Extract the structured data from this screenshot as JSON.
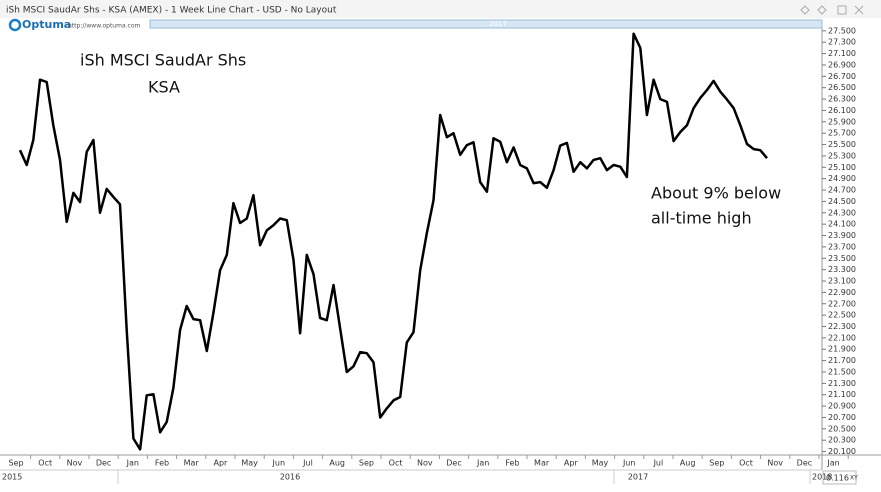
{
  "header": {
    "title": "iSh MSCI SaudAr Shs  - KSA (AMEX) - 1 Week Line Chart - USD - No Layout",
    "brand": "Optuma",
    "url": "http://www.optuma.com",
    "scroll_label": "2017"
  },
  "chart_data": {
    "type": "line",
    "annotations": [
      "iSh MSCI SaudAr Shs",
      "KSA",
      "About 9% below",
      "all-time high"
    ],
    "color": "#000000",
    "values": [
      25.4,
      25.14,
      25.58,
      26.64,
      26.6,
      25.84,
      25.23,
      24.14,
      24.65,
      24.49,
      25.37,
      25.58,
      24.3,
      24.72,
      24.58,
      24.45,
      22.24,
      20.33,
      20.14,
      21.09,
      21.11,
      20.44,
      20.62,
      21.22,
      22.24,
      22.66,
      22.43,
      22.41,
      21.87,
      22.54,
      23.29,
      23.56,
      24.47,
      24.12,
      24.2,
      24.61,
      23.73,
      23.99,
      24.08,
      24.2,
      24.17,
      23.47,
      22.18,
      23.56,
      23.22,
      22.45,
      22.41,
      23.03,
      22.27,
      21.5,
      21.6,
      21.85,
      21.83,
      21.67,
      20.7,
      20.86,
      21.0,
      21.06,
      22.02,
      22.2,
      23.29,
      23.94,
      24.52,
      26.02,
      25.63,
      25.7,
      25.32,
      25.49,
      25.54,
      24.84,
      24.67,
      25.61,
      25.55,
      25.19,
      25.45,
      25.14,
      25.08,
      24.82,
      24.84,
      24.74,
      25.05,
      25.48,
      25.53,
      25.02,
      25.19,
      25.08,
      25.23,
      25.26,
      25.05,
      25.14,
      25.11,
      24.93,
      27.45,
      27.2,
      26.02,
      26.64,
      26.3,
      26.25,
      25.56,
      25.72,
      25.84,
      26.14,
      26.32,
      26.46,
      26.62,
      26.43,
      26.29,
      26.14,
      25.84,
      25.51,
      25.42,
      25.4,
      25.26
    ],
    "months": [
      "Sep",
      "Oct",
      "Nov",
      "Dec",
      "Jan",
      "Feb",
      "Mar",
      "Apr",
      "May",
      "Jun",
      "Jul",
      "Aug",
      "Sep",
      "Oct",
      "Nov",
      "Dec",
      "Jan",
      "Feb",
      "Mar",
      "Apr",
      "May",
      "Jun",
      "Jul",
      "Aug",
      "Sep",
      "Oct",
      "Nov",
      "Dec",
      "Jan"
    ],
    "years": [
      "2015",
      "2016",
      "2017",
      "2018"
    ],
    "ylim": [
      20.04,
      27.55
    ],
    "yticks": [
      {
        "value": 27.5,
        "label": "27.500"
      },
      {
        "value": 27.3,
        "label": "27.300"
      },
      {
        "value": 27.1,
        "label": "27.100"
      },
      {
        "value": 26.9,
        "label": "26.900"
      },
      {
        "value": 26.7,
        "label": "26.700"
      },
      {
        "value": 26.5,
        "label": "26.500"
      },
      {
        "value": 26.3,
        "label": "26.300"
      },
      {
        "value": 26.1,
        "label": "26.100"
      },
      {
        "value": 25.9,
        "label": "25.900"
      },
      {
        "value": 25.7,
        "label": "25.700"
      },
      {
        "value": 25.5,
        "label": "25.500"
      },
      {
        "value": 25.3,
        "label": "25.300"
      },
      {
        "value": 25.1,
        "label": "25.100"
      },
      {
        "value": 24.9,
        "label": "24.900"
      },
      {
        "value": 24.7,
        "label": "24.700"
      },
      {
        "value": 24.5,
        "label": "24.500"
      },
      {
        "value": 24.3,
        "label": "24.300"
      },
      {
        "value": 24.1,
        "label": "24.100"
      },
      {
        "value": 23.9,
        "label": "23.900"
      },
      {
        "value": 23.7,
        "label": "23.700"
      },
      {
        "value": 23.5,
        "label": "23.500"
      },
      {
        "value": 23.3,
        "label": "23.300"
      },
      {
        "value": 23.1,
        "label": "23.100"
      },
      {
        "value": 22.9,
        "label": "22.900"
      },
      {
        "value": 22.7,
        "label": "22.700"
      },
      {
        "value": 22.5,
        "label": "22.500"
      },
      {
        "value": 22.3,
        "label": "22.300"
      },
      {
        "value": 22.1,
        "label": "22.100"
      },
      {
        "value": 21.9,
        "label": "21.900"
      },
      {
        "value": 21.7,
        "label": "21.700"
      },
      {
        "value": 21.5,
        "label": "21.500"
      },
      {
        "value": 21.3,
        "label": "21.300"
      },
      {
        "value": 21.1,
        "label": "21.100"
      },
      {
        "value": 20.9,
        "label": "20.900"
      },
      {
        "value": 20.7,
        "label": "20.700"
      },
      {
        "value": 20.5,
        "label": "20.500"
      },
      {
        "value": 20.3,
        "label": "20.300"
      },
      {
        "value": 20.1,
        "label": "20.100"
      }
    ],
    "corner_labels": [
      "0.116",
      "XY"
    ]
  }
}
